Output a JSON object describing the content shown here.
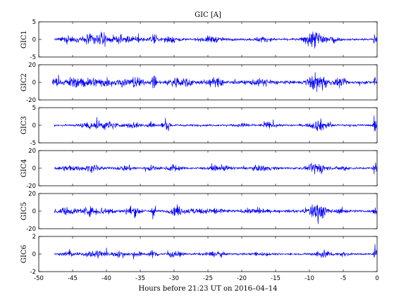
{
  "chart_data": {
    "type": "line",
    "title": "GIC [A]",
    "xlabel": "Hours before  21:23 UT on 2016–04–14",
    "xlim": [
      -50,
      0
    ],
    "xticks": [
      "-50",
      "-45",
      "-40",
      "-35",
      "-30",
      "-25",
      "-20",
      "-15",
      "-10",
      "-5",
      "0"
    ],
    "line_color": "#0000ff",
    "grid": false,
    "panels": [
      {
        "ylabel": "GIC1",
        "ylim": [
          -5,
          5
        ],
        "yticks": [
          "5",
          "0",
          "-5"
        ],
        "data_start": -47.7,
        "noise": 0.22,
        "bursts": [
          {
            "t": -45.5,
            "w": 1.2,
            "a": 0.5
          },
          {
            "t": -42.2,
            "w": 1.2,
            "a": 1.0
          },
          {
            "t": -40.5,
            "w": 0.8,
            "a": 0.8
          },
          {
            "t": -38.0,
            "w": 1.5,
            "a": 0.6
          },
          {
            "t": -35.5,
            "w": 1.0,
            "a": 0.5
          },
          {
            "t": -33.0,
            "w": 0.5,
            "a": 0.9
          },
          {
            "t": -30.5,
            "w": 1.0,
            "a": 0.6
          },
          {
            "t": -24.5,
            "w": 1.5,
            "a": 0.5
          },
          {
            "t": -17.0,
            "w": 1.0,
            "a": 0.4
          },
          {
            "t": -10.0,
            "w": 0.8,
            "a": 1.3
          },
          {
            "t": -8.5,
            "w": 1.0,
            "a": 1.6
          },
          {
            "t": -6.5,
            "w": 0.7,
            "a": 0.7
          },
          {
            "t": -0.3,
            "w": 0.2,
            "a": 2.2
          }
        ]
      },
      {
        "ylabel": "GIC2",
        "ylim": [
          -20,
          20
        ],
        "yticks": [
          "20",
          "0",
          "-20"
        ],
        "data_start": -48.0,
        "noise": 1.2,
        "bursts": [
          {
            "t": -47.5,
            "w": 0.5,
            "a": 3.0
          },
          {
            "t": -45.0,
            "w": 1.2,
            "a": 3.0
          },
          {
            "t": -42.5,
            "w": 1.5,
            "a": 3.2
          },
          {
            "t": -40.0,
            "w": 1.0,
            "a": 2.5
          },
          {
            "t": -37.5,
            "w": 1.5,
            "a": 2.2
          },
          {
            "t": -35.5,
            "w": 0.8,
            "a": 3.5
          },
          {
            "t": -33.0,
            "w": 0.3,
            "a": 7.0
          },
          {
            "t": -30.0,
            "w": 1.0,
            "a": 3.5
          },
          {
            "t": -28.0,
            "w": 1.0,
            "a": 2.5
          },
          {
            "t": -24.0,
            "w": 1.5,
            "a": 2.5
          },
          {
            "t": -17.0,
            "w": 2.0,
            "a": 1.8
          },
          {
            "t": -8.8,
            "w": 1.3,
            "a": 6.5
          },
          {
            "t": -5.5,
            "w": 1.0,
            "a": 2.0
          },
          {
            "t": -0.3,
            "w": 0.2,
            "a": 6.0
          }
        ]
      },
      {
        "ylabel": "GIC3",
        "ylim": [
          -5,
          5
        ],
        "yticks": [
          "5",
          "0",
          "-5"
        ],
        "data_start": -47.7,
        "noise": 0.2,
        "bursts": [
          {
            "t": -42.0,
            "w": 1.5,
            "a": 0.8
          },
          {
            "t": -39.5,
            "w": 1.2,
            "a": 0.6
          },
          {
            "t": -36.0,
            "w": 1.0,
            "a": 0.5
          },
          {
            "t": -33.5,
            "w": 0.5,
            "a": 1.0
          },
          {
            "t": -31.0,
            "w": 0.8,
            "a": 0.6
          },
          {
            "t": -19.5,
            "w": 1.0,
            "a": 0.3
          },
          {
            "t": -16.0,
            "w": 0.8,
            "a": 0.5
          },
          {
            "t": -8.5,
            "w": 1.2,
            "a": 1.0
          },
          {
            "t": -0.3,
            "w": 0.2,
            "a": 2.0
          }
        ]
      },
      {
        "ylabel": "GIC4",
        "ylim": [
          -20,
          20
        ],
        "yticks": [
          "20",
          "0",
          "-20"
        ],
        "data_start": -47.7,
        "noise": 0.9,
        "bursts": [
          {
            "t": -45.5,
            "w": 1.5,
            "a": 1.5
          },
          {
            "t": -42.0,
            "w": 1.2,
            "a": 2.0
          },
          {
            "t": -37.0,
            "w": 1.2,
            "a": 1.5
          },
          {
            "t": -33.5,
            "w": 0.8,
            "a": 1.6
          },
          {
            "t": -30.0,
            "w": 0.8,
            "a": 2.5
          },
          {
            "t": -23.0,
            "w": 1.5,
            "a": 1.5
          },
          {
            "t": -17.0,
            "w": 1.5,
            "a": 1.5
          },
          {
            "t": -8.8,
            "w": 1.2,
            "a": 4.0
          },
          {
            "t": -5.0,
            "w": 0.7,
            "a": 1.5
          },
          {
            "t": -0.3,
            "w": 0.2,
            "a": 7.0
          }
        ]
      },
      {
        "ylabel": "GIC5",
        "ylim": [
          -20,
          20
        ],
        "yticks": [
          "20",
          "0",
          "-20"
        ],
        "data_start": -47.7,
        "noise": 1.0,
        "bursts": [
          {
            "t": -46.0,
            "w": 1.5,
            "a": 2.0
          },
          {
            "t": -42.5,
            "w": 1.5,
            "a": 2.5
          },
          {
            "t": -40.0,
            "w": 1.2,
            "a": 2.0
          },
          {
            "t": -36.0,
            "w": 1.0,
            "a": 3.5
          },
          {
            "t": -33.0,
            "w": 0.3,
            "a": 6.0
          },
          {
            "t": -29.5,
            "w": 1.0,
            "a": 3.0
          },
          {
            "t": -27.0,
            "w": 1.0,
            "a": 1.8
          },
          {
            "t": -24.0,
            "w": 1.5,
            "a": 2.0
          },
          {
            "t": -18.0,
            "w": 1.5,
            "a": 1.5
          },
          {
            "t": -8.8,
            "w": 1.3,
            "a": 7.0
          },
          {
            "t": -5.0,
            "w": 0.8,
            "a": 1.6
          },
          {
            "t": -0.3,
            "w": 0.2,
            "a": 4.0
          }
        ]
      },
      {
        "ylabel": "GIC6",
        "ylim": [
          -2,
          2
        ],
        "yticks": [
          "2",
          "0",
          "-2"
        ],
        "data_start": -47.7,
        "noise": 0.07,
        "bursts": [
          {
            "t": -45.5,
            "w": 1.2,
            "a": 0.15
          },
          {
            "t": -41.5,
            "w": 1.5,
            "a": 0.3
          },
          {
            "t": -38.0,
            "w": 1.0,
            "a": 0.2
          },
          {
            "t": -35.5,
            "w": 0.8,
            "a": 0.18
          },
          {
            "t": -33.0,
            "w": 0.6,
            "a": 0.3
          },
          {
            "t": -30.0,
            "w": 1.0,
            "a": 0.2
          },
          {
            "t": -24.0,
            "w": 1.5,
            "a": 0.15
          },
          {
            "t": -17.0,
            "w": 1.2,
            "a": 0.12
          },
          {
            "t": -8.0,
            "w": 1.2,
            "a": 0.3
          },
          {
            "t": -5.0,
            "w": 0.8,
            "a": 0.12
          },
          {
            "t": -0.3,
            "w": 0.2,
            "a": 0.7
          }
        ]
      }
    ]
  }
}
